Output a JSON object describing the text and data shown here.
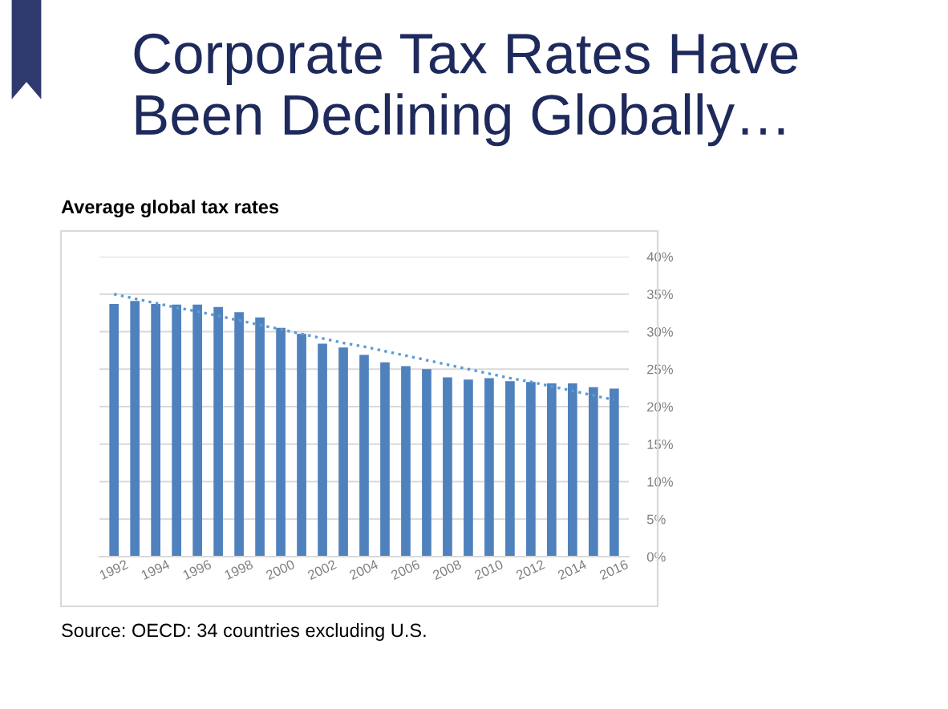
{
  "chart_data": {
    "type": "bar",
    "title": "Corporate Tax Rates Have Been Declining Globally…",
    "subtitle": "Average global tax rates",
    "annotations": [
      "Source: OECD: 34 countries excluding U.S."
    ],
    "categories": [
      "1992",
      null,
      "1994",
      null,
      "1996",
      null,
      "1998",
      null,
      "2000",
      null,
      "2002",
      null,
      "2004",
      null,
      "2006",
      null,
      "2008",
      null,
      "2010",
      null,
      "2012",
      null,
      "2014",
      null,
      "2016"
    ],
    "series": [
      {
        "color": "#4f81bd",
        "values": [
          33.7,
          34.1,
          33.7,
          33.6,
          33.6,
          33.3,
          32.6,
          31.9,
          30.5,
          29.7,
          28.4,
          27.9,
          26.9,
          25.9,
          25.4,
          25.0,
          23.9,
          23.6,
          23.8,
          23.4,
          23.3,
          23.1,
          23.1,
          22.6,
          22.4
        ]
      },
      {
        "type": "line",
        "color": "#5b9bd5",
        "line_style": "dotted",
        "values": [
          35.0,
          34.4,
          33.8,
          33.2,
          32.7,
          32.1,
          31.5,
          30.9,
          30.3,
          29.7,
          29.1,
          28.5,
          28.0,
          27.4,
          26.8,
          26.2,
          25.6,
          25.0,
          24.4,
          23.8,
          23.3,
          22.7,
          22.1,
          21.5,
          20.9
        ]
      }
    ],
    "ylim": [
      0,
      40
    ],
    "yticks": [
      {
        "value": 0,
        "label": "0%"
      },
      {
        "value": 5,
        "label": "5%"
      },
      {
        "value": 10,
        "label": "10%"
      },
      {
        "value": 15,
        "label": "15%"
      },
      {
        "value": 20,
        "label": "20%"
      },
      {
        "value": 25,
        "label": "25%"
      },
      {
        "value": 30,
        "label": "30%"
      },
      {
        "value": 35,
        "label": "35%"
      },
      {
        "value": 40,
        "label": "40%"
      }
    ],
    "grid": "y",
    "legend": false
  }
}
